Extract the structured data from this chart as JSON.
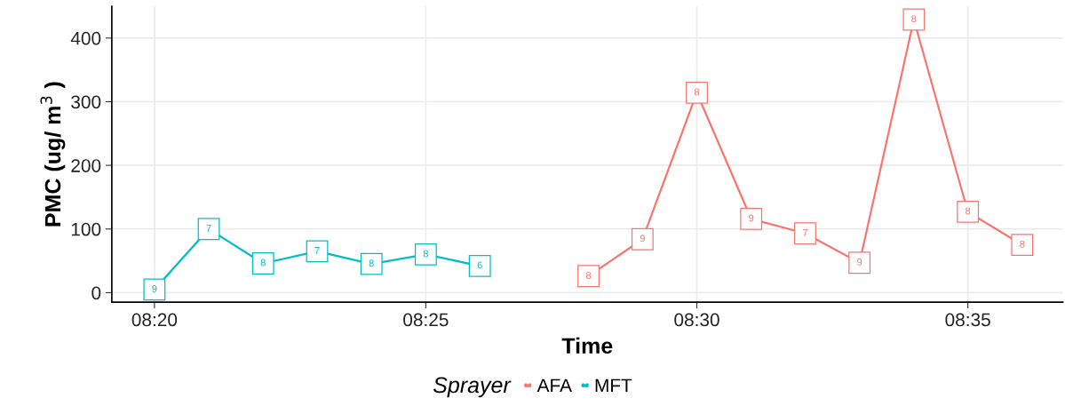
{
  "chart_data": {
    "type": "line",
    "xlabel": "Time",
    "ylabel": "PMC (ug/ m$^{3}$ )",
    "legend_title": "Sprayer",
    "legend": "bottom",
    "grid": true,
    "marker": "square",
    "line_style": "solid",
    "xlim": [
      8.3202,
      8.6125
    ],
    "ylim": [
      -15,
      450
    ],
    "xticks": [
      {
        "value": 8.3333,
        "label": "08:20"
      },
      {
        "value": 8.4167,
        "label": "08:25"
      },
      {
        "value": 8.5,
        "label": "08:30"
      },
      {
        "value": 8.5833,
        "label": "08:35"
      }
    ],
    "yticks": [
      0,
      100,
      200,
      300,
      400
    ],
    "series": [
      {
        "name": "AFA",
        "color": "#f8766d",
        "x": [
          8.4667,
          8.4833,
          8.5,
          8.5167,
          8.5333,
          8.55,
          8.5667,
          8.5833,
          8.6
        ],
        "values": [
          26,
          84,
          314,
          116,
          93,
          47,
          429,
          127,
          75
        ]
      },
      {
        "name": "MFT",
        "color": "#00bfc4",
        "x": [
          8.3333,
          8.35,
          8.3667,
          8.3833,
          8.4,
          8.4167,
          8.4333
        ],
        "values": [
          5,
          100,
          46,
          65,
          45,
          60,
          42
        ]
      }
    ],
    "annotations": [
      {
        "text": "8",
        "x": 8.4667,
        "y": 26
      },
      {
        "text": "9",
        "x": 8.4833,
        "y": 84
      },
      {
        "text": "8",
        "x": 8.5,
        "y": 314
      },
      {
        "text": "9",
        "x": 8.5167,
        "y": 116
      },
      {
        "text": "7",
        "x": 8.5333,
        "y": 93
      },
      {
        "text": "9",
        "x": 8.55,
        "y": 47
      },
      {
        "text": "8",
        "x": 8.5667,
        "y": 429
      },
      {
        "text": "8",
        "x": 8.5833,
        "y": 127
      },
      {
        "text": "8",
        "x": 8.6,
        "y": 75
      },
      {
        "text": "9",
        "x": 8.3333,
        "y": 5
      },
      {
        "text": "7",
        "x": 8.35,
        "y": 100
      },
      {
        "text": "8",
        "x": 8.3667,
        "y": 46
      },
      {
        "text": "7",
        "x": 8.3833,
        "y": 65
      },
      {
        "text": "8",
        "x": 8.4,
        "y": 45
      },
      {
        "text": "8",
        "x": 8.4167,
        "y": 60
      },
      {
        "text": "6",
        "x": 8.4333,
        "y": 42
      }
    ]
  }
}
